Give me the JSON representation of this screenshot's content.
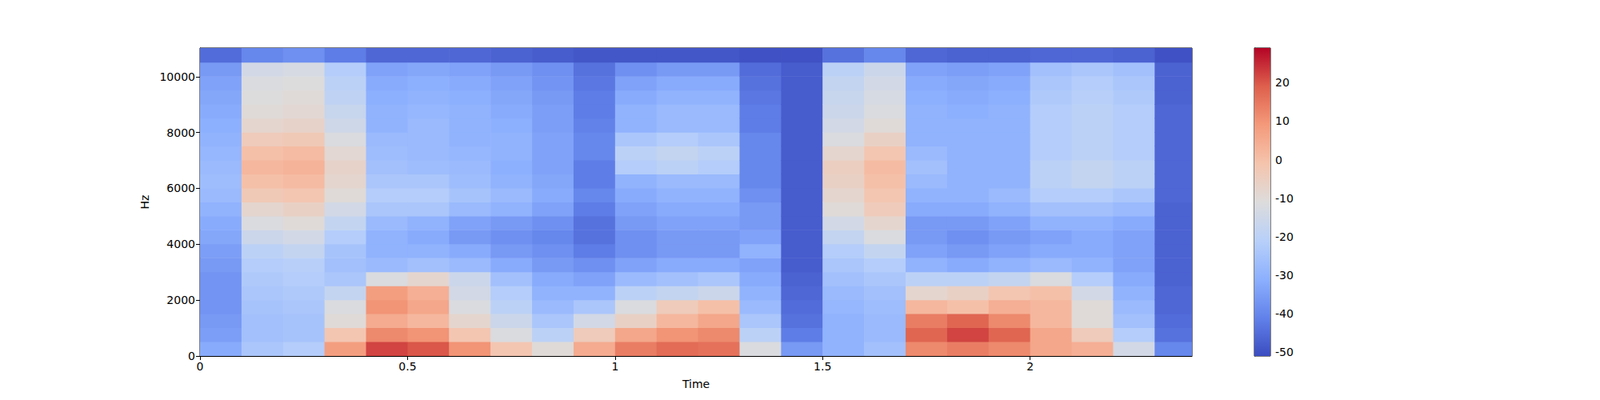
{
  "chart_data": {
    "type": "heatmap",
    "x_label": "Time",
    "y_label": "Hz",
    "xlim": [
      0,
      2.39
    ],
    "xticks": [
      0,
      0.5,
      1,
      1.5,
      2
    ],
    "ylim": [
      0,
      11025
    ],
    "yticks": [
      0,
      2000,
      4000,
      6000,
      8000,
      10000
    ],
    "time_edges": [
      0,
      0.1,
      0.2,
      0.3,
      0.4,
      0.5,
      0.6,
      0.7,
      0.8,
      0.9,
      1.0,
      1.1,
      1.2,
      1.3,
      1.4,
      1.5,
      1.6,
      1.7,
      1.8,
      1.9,
      2.0,
      2.1,
      2.2,
      2.3,
      2.39
    ],
    "freq_edges": [
      0,
      500,
      1000,
      1500,
      2000,
      2500,
      3000,
      3500,
      4000,
      4500,
      5000,
      5500,
      6000,
      6500,
      7000,
      7500,
      8000,
      8500,
      9000,
      9500,
      10000,
      10500,
      11025
    ],
    "cells": [
      [
        -32,
        -35,
        -36,
        -37,
        -37,
        -37,
        -36,
        -35,
        -33,
        -32,
        -30,
        -28,
        -27,
        -28,
        -29,
        -30,
        -31,
        -32,
        -33,
        -34,
        -36,
        -45
      ],
      [
        -24,
        -26,
        -26,
        -25,
        -24,
        -23,
        -22,
        -20,
        -16,
        -12,
        -8,
        -3,
        0,
        2,
        0,
        -4,
        -8,
        -10,
        -11,
        -12,
        -14,
        -40
      ],
      [
        -22,
        -25,
        -25,
        -24,
        -23,
        -22,
        -21,
        -18,
        -14,
        -10,
        -6,
        -2,
        1,
        3,
        1,
        -3,
        -7,
        -9,
        -10,
        -11,
        -13,
        -38
      ],
      [
        8,
        -2,
        -10,
        -12,
        -18,
        -24,
        -26,
        -25,
        -22,
        -18,
        -14,
        -10,
        -8,
        -7,
        -9,
        -12,
        -15,
        -17,
        -19,
        -20,
        -22,
        -42
      ],
      [
        22,
        12,
        5,
        10,
        8,
        -12,
        -28,
        -30,
        -30,
        -28,
        -24,
        -22,
        -24,
        -26,
        -27,
        -28,
        -30,
        -30,
        -31,
        -32,
        -34,
        -46
      ],
      [
        20,
        10,
        2,
        6,
        4,
        -8,
        -26,
        -30,
        -32,
        -30,
        -24,
        -22,
        -24,
        -27,
        -28,
        -28,
        -28,
        -29,
        -30,
        -31,
        -33,
        -46
      ],
      [
        10,
        -2,
        -8,
        -12,
        -14,
        -16,
        -28,
        -32,
        -36,
        -34,
        -28,
        -25,
        -27,
        -28,
        -29,
        -30,
        -30,
        -30,
        -31,
        -32,
        -34,
        -46
      ],
      [
        -2,
        -12,
        -16,
        -20,
        -22,
        -26,
        -32,
        -36,
        -38,
        -36,
        -30,
        -28,
        -30,
        -31,
        -30,
        -30,
        -31,
        -32,
        -33,
        -34,
        -36,
        -47
      ],
      [
        -10,
        -20,
        -24,
        -28,
        -30,
        -32,
        -36,
        -38,
        -40,
        -38,
        -34,
        -32,
        -33,
        -34,
        -34,
        -34,
        -35,
        -35,
        -36,
        -37,
        -38,
        -48
      ],
      [
        5,
        -4,
        -14,
        -24,
        -30,
        -34,
        -38,
        -42,
        -44,
        -44,
        -42,
        -40,
        -42,
        -42,
        -40,
        -40,
        -41,
        -42,
        -42,
        -43,
        -44,
        -49
      ],
      [
        14,
        6,
        -6,
        -12,
        -20,
        -28,
        -34,
        -38,
        -38,
        -36,
        -34,
        -32,
        -30,
        -22,
        -20,
        -24,
        -30,
        -30,
        -32,
        -34,
        -38,
        -49
      ],
      [
        17,
        10,
        2,
        -4,
        -18,
        -26,
        -32,
        -36,
        -36,
        -34,
        -32,
        -30,
        -28,
        -20,
        -18,
        -22,
        -28,
        -28,
        -30,
        -32,
        -36,
        -49
      ],
      [
        16,
        12,
        6,
        0,
        -16,
        -24,
        -32,
        -36,
        -36,
        -34,
        -32,
        -30,
        -28,
        -22,
        -20,
        -24,
        -28,
        -28,
        -30,
        -32,
        -36,
        -49
      ],
      [
        -12,
        -20,
        -24,
        -28,
        -30,
        -32,
        -34,
        -30,
        -34,
        -36,
        -36,
        -38,
        -40,
        -40,
        -40,
        -40,
        -42,
        -42,
        -43,
        -44,
        -45,
        -50
      ],
      [
        -36,
        -42,
        -44,
        -45,
        -46,
        -47,
        -48,
        -48,
        -48,
        -48,
        -48,
        -48,
        -48,
        -48,
        -48,
        -48,
        -48,
        -48,
        -48,
        -48,
        -48,
        -50
      ],
      [
        -30,
        -30,
        -30,
        -29,
        -28,
        -26,
        -24,
        -22,
        -18,
        -14,
        -10,
        -8,
        -6,
        -5,
        -8,
        -12,
        -14,
        -16,
        -17,
        -18,
        -20,
        -44
      ],
      [
        -26,
        -28,
        -28,
        -27,
        -26,
        -24,
        -22,
        -18,
        -12,
        -8,
        -4,
        -2,
        0,
        1,
        -2,
        -6,
        -10,
        -12,
        -13,
        -14,
        -16,
        -40
      ],
      [
        12,
        18,
        14,
        2,
        -8,
        -20,
        -30,
        -34,
        -36,
        -36,
        -32,
        -30,
        -28,
        -26,
        -28,
        -30,
        -30,
        -30,
        -31,
        -32,
        -34,
        -46
      ],
      [
        14,
        22,
        18,
        0,
        -6,
        -20,
        -32,
        -36,
        -38,
        -36,
        -32,
        -30,
        -30,
        -30,
        -30,
        -30,
        -30,
        -31,
        -32,
        -33,
        -35,
        -47
      ],
      [
        12,
        18,
        12,
        4,
        -2,
        -18,
        -30,
        -34,
        -36,
        -34,
        -30,
        -28,
        -30,
        -30,
        -30,
        -30,
        -30,
        -30,
        -31,
        -32,
        -34,
        -47
      ],
      [
        6,
        6,
        2,
        2,
        0,
        -12,
        -28,
        -32,
        -34,
        -30,
        -26,
        -22,
        -20,
        -20,
        -22,
        -22,
        -22,
        -22,
        -23,
        -24,
        -26,
        -46
      ],
      [
        4,
        -4,
        -10,
        -10,
        -14,
        -22,
        -30,
        -32,
        -32,
        -30,
        -26,
        -22,
        -18,
        -18,
        -20,
        -20,
        -20,
        -20,
        -21,
        -22,
        -24,
        -46
      ],
      [
        -14,
        -22,
        -26,
        -28,
        -30,
        -32,
        -34,
        -34,
        -34,
        -32,
        -28,
        -24,
        -20,
        -20,
        -22,
        -22,
        -22,
        -22,
        -23,
        -24,
        -26,
        -47
      ],
      [
        -40,
        -44,
        -45,
        -46,
        -46,
        -47,
        -47,
        -47,
        -47,
        -47,
        -47,
        -46,
        -46,
        -46,
        -46,
        -46,
        -46,
        -46,
        -47,
        -47,
        -47,
        -50
      ]
    ],
    "colorbar": {
      "range": [
        -51,
        29
      ],
      "ticks": [
        -50,
        -40,
        -30,
        -20,
        -10,
        0,
        10,
        20
      ]
    }
  }
}
